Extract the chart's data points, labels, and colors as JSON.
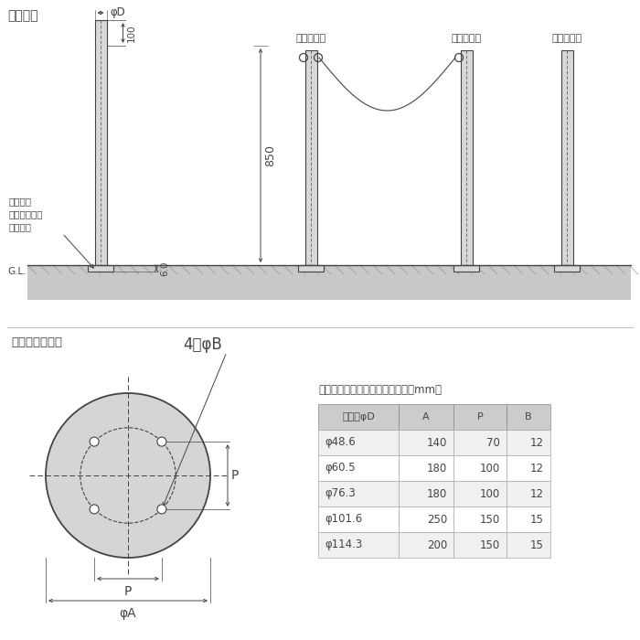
{
  "title": "製品図面",
  "bg_color": "#ffffff",
  "lc": "#444444",
  "gray_post": "#d8d8d8",
  "gray_ground": "#cccccc",
  "label_phiD": "φD",
  "label_100": "100",
  "label_850": "850",
  "label_60": "6.0",
  "label_GL": "G.L.",
  "label_anchor": "あと施工\nアンカー固定\n（別途）",
  "label_ryohook": "両フック付",
  "label_katahook": "片フック付",
  "label_nohook": "フックなし",
  "label_baseplate": "ベースプレート",
  "label_4phiB": "4－φB",
  "label_P_right": "P",
  "label_P_bottom": "P",
  "label_phiA": "φA",
  "table_title": "ベースプレート寸法表　＜単位：mm＞",
  "table_headers": [
    "支柱径φD",
    "A",
    "P",
    "B"
  ],
  "table_data": [
    [
      "φ48.6",
      "140",
      "70",
      "12"
    ],
    [
      "φ60.5",
      "180",
      "100",
      "12"
    ],
    [
      "φ76.3",
      "180",
      "100",
      "12"
    ],
    [
      "φ101.6",
      "250",
      "150",
      "15"
    ],
    [
      "φ114.3",
      "200",
      "150",
      "15"
    ]
  ]
}
